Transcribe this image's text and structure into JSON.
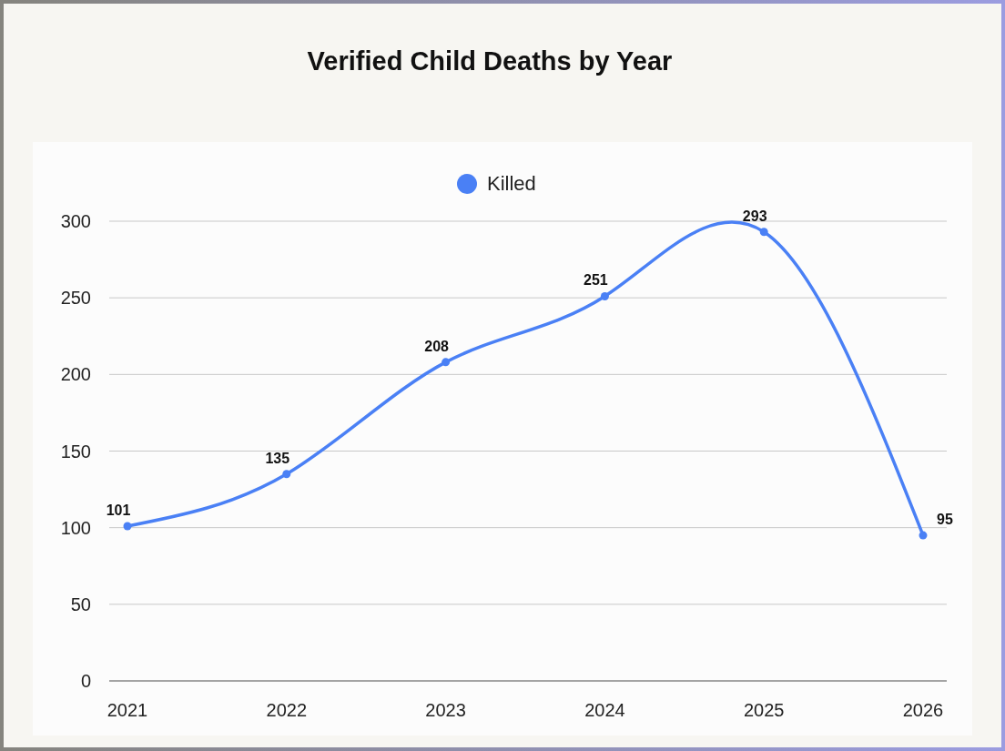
{
  "chart_data": {
    "type": "line",
    "title": "Verified Child Deaths by Year",
    "categories": [
      "2021",
      "2022",
      "2023",
      "2024",
      "2025",
      "2026"
    ],
    "series": [
      {
        "name": "Killed",
        "color": "#4a80f5",
        "values": [
          101,
          135,
          208,
          251,
          293,
          95
        ]
      }
    ],
    "ylim": [
      0,
      300
    ],
    "yticks": [
      0,
      50,
      100,
      150,
      200,
      250,
      300
    ],
    "grid": "y",
    "legend": "top",
    "marker": "circle",
    "data_labels": true
  }
}
